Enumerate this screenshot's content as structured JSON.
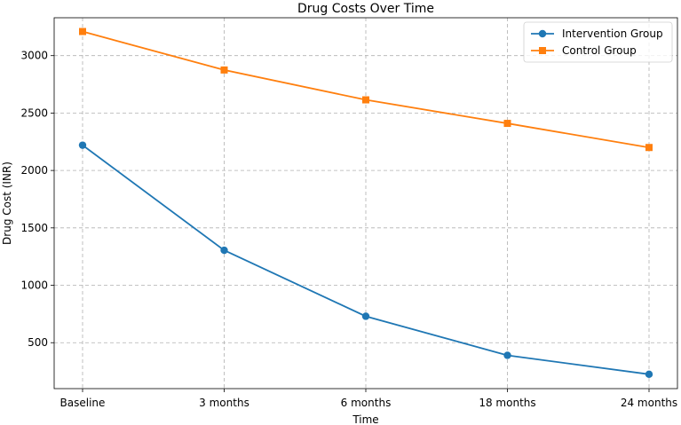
{
  "chart_data": {
    "type": "line",
    "title": "Drug Costs Over Time",
    "xlabel": "Time",
    "ylabel": "Drug Cost (INR)",
    "categories": [
      "Baseline",
      "3 months",
      "6 months",
      "18 months",
      "24 months"
    ],
    "ylim": [
      100,
      3330
    ],
    "yticks": [
      500,
      1000,
      1500,
      2000,
      2500,
      3000
    ],
    "grid": true,
    "legend_position": "top-right",
    "series": [
      {
        "name": "Intervention Group",
        "color": "#1f77b4",
        "marker": "circle",
        "values": [
          2220,
          1305,
          730,
          390,
          225
        ]
      },
      {
        "name": "Control Group",
        "color": "#ff7f0e",
        "marker": "square",
        "values": [
          3210,
          2875,
          2615,
          2410,
          2200
        ]
      }
    ]
  }
}
